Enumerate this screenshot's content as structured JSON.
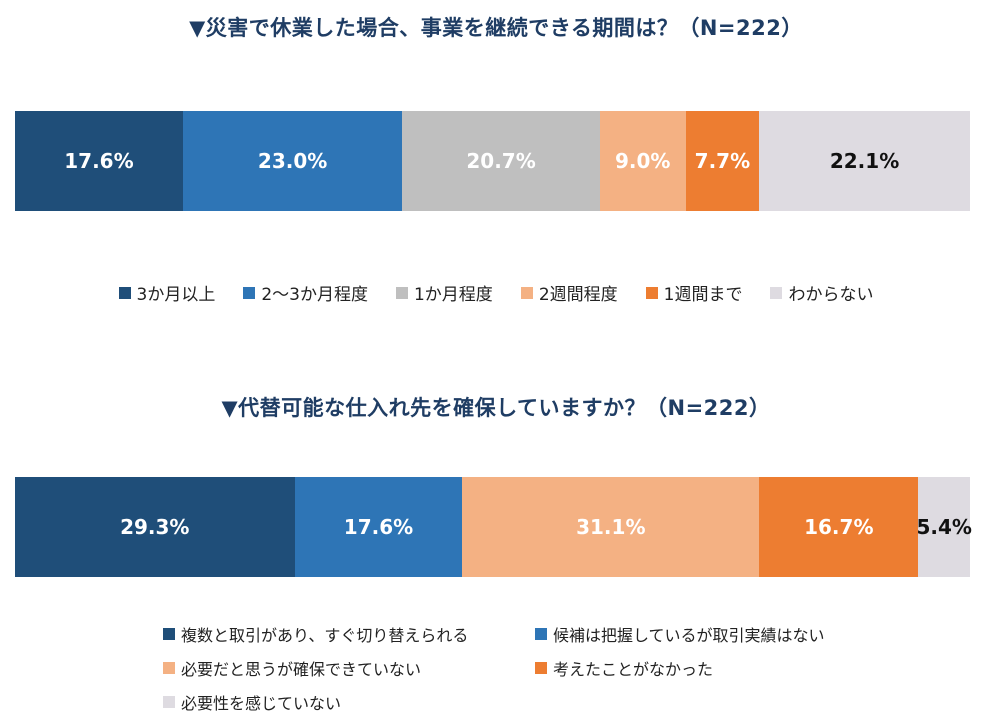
{
  "chart_data": [
    {
      "type": "bar",
      "orientation": "horizontal-stacked-100",
      "title": "▼災害で休業した場合、事業を継続できる期間は？（N=222）",
      "categories": [
        "3か月以上",
        "2～3か月程度",
        "1か月程度",
        "2週間程度",
        "1週間まで",
        "わからない"
      ],
      "values": [
        17.6,
        23.0,
        20.7,
        9.0,
        7.7,
        22.1
      ],
      "labels": [
        "17.6%",
        "23.0%",
        "20.7%",
        "9.0%",
        "7.7%",
        "22.1%"
      ],
      "colors": [
        "#1f4e79",
        "#2e75b6",
        "#bfbfbf",
        "#f4b183",
        "#ed7d31",
        "#dedbe1"
      ],
      "label_colors": [
        "#ffffff",
        "#ffffff",
        "#ffffff",
        "#ffffff",
        "#ffffff",
        "#111111"
      ],
      "legend_position": "bottom"
    },
    {
      "type": "bar",
      "orientation": "horizontal-stacked-100",
      "title": "▼代替可能な仕入れ先を確保していますか？（N=222）",
      "categories": [
        "複数と取引があり、すぐ切り替えられる",
        "候補は把握しているが取引実績はない",
        "必要だと思うが確保できていない",
        "考えたことがなかった",
        "必要性を感じていない"
      ],
      "values": [
        29.3,
        17.6,
        31.1,
        16.7,
        5.4
      ],
      "labels": [
        "29.3%",
        "17.6%",
        "31.1%",
        "16.7%",
        "5.4%"
      ],
      "colors": [
        "#1f4e79",
        "#2e75b6",
        "#f4b183",
        "#ed7d31",
        "#dedbe1"
      ],
      "label_colors": [
        "#ffffff",
        "#ffffff",
        "#ffffff",
        "#ffffff",
        "#111111"
      ],
      "legend_position": "bottom"
    }
  ]
}
